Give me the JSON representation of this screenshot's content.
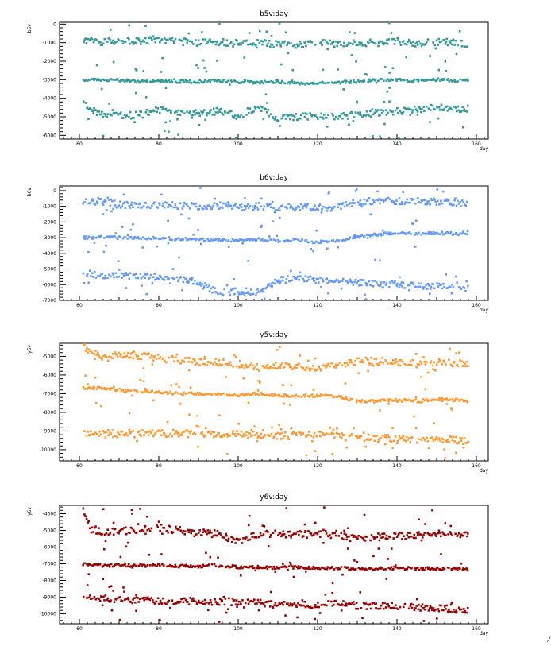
{
  "chart_data": [
    {
      "type": "scatter",
      "title": "b5v:day",
      "xlabel": "day",
      "ylabel": "b5v",
      "xlim": [
        55,
        163
      ],
      "ylim": [
        -6200,
        100
      ],
      "xticks": [
        60,
        80,
        100,
        120,
        140,
        160
      ],
      "yticks": [
        0,
        -1000,
        -2000,
        -3000,
        -4000,
        -5000,
        -6000
      ],
      "color": "#339999",
      "grid": false,
      "series": [
        {
          "values_by_band": [
            {
              "x": [
                61,
                65,
                70,
                75,
                80,
                85,
                90,
                95,
                100,
                105,
                110,
                115,
                120,
                125,
                130,
                135,
                140,
                145,
                150,
                155,
                158
              ],
              "y": [
                -900,
                -950,
                -900,
                -950,
                -850,
                -950,
                -1000,
                -950,
                -1050,
                -1000,
                -1100,
                -1100,
                -1000,
                -1050,
                -1050,
                -1000,
                -950,
                -1050,
                -950,
                -1000,
                -1050
              ]
            },
            {
              "x": [
                61,
                65,
                70,
                75,
                80,
                85,
                90,
                95,
                100,
                105,
                110,
                115,
                120,
                125,
                130,
                135,
                140,
                145,
                150,
                155,
                158
              ],
              "y": [
                -3050,
                -3000,
                -3050,
                -3100,
                -3050,
                -3100,
                -3100,
                -3050,
                -3100,
                -3150,
                -3100,
                -3200,
                -3200,
                -3150,
                -3100,
                -3000,
                -3000,
                -3050,
                -3000,
                -3050,
                -3050
              ]
            },
            {
              "x": [
                61,
                65,
                70,
                75,
                80,
                85,
                90,
                95,
                100,
                105,
                110,
                115,
                120,
                125,
                130,
                135,
                140,
                145,
                150,
                155,
                158
              ],
              "y": [
                -4300,
                -4900,
                -4950,
                -4900,
                -4650,
                -4700,
                -4800,
                -4700,
                -4950,
                -4500,
                -5100,
                -5000,
                -4950,
                -5000,
                -4900,
                -4800,
                -4700,
                -4600,
                -4500,
                -4550,
                -4550
              ]
            }
          ]
        }
      ]
    },
    {
      "type": "scatter",
      "title": "b6v:day",
      "xlabel": "day",
      "ylabel": "b6v",
      "xlim": [
        55,
        163
      ],
      "ylim": [
        -7000,
        300
      ],
      "xticks": [
        60,
        80,
        100,
        120,
        140,
        160
      ],
      "yticks": [
        0,
        -1000,
        -2000,
        -3000,
        -4000,
        -5000,
        -6000,
        -7000
      ],
      "color": "#6699ff",
      "grid": false,
      "series": [
        {
          "values_by_band": [
            {
              "x": [
                61,
                65,
                70,
                75,
                80,
                85,
                90,
                95,
                100,
                105,
                110,
                115,
                120,
                125,
                130,
                135,
                140,
                145,
                150,
                155,
                158
              ],
              "y": [
                -750,
                -650,
                -900,
                -950,
                -900,
                -950,
                -1000,
                -950,
                -1050,
                -1000,
                -1050,
                -1050,
                -1050,
                -1100,
                -700,
                -650,
                -650,
                -700,
                -650,
                -800,
                -850
              ]
            },
            {
              "x": [
                61,
                65,
                70,
                75,
                80,
                85,
                90,
                95,
                100,
                105,
                110,
                115,
                120,
                125,
                130,
                135,
                140,
                145,
                150,
                155,
                158
              ],
              "y": [
                -3000,
                -2950,
                -3000,
                -3050,
                -3000,
                -3100,
                -3100,
                -3150,
                -3200,
                -3100,
                -3200,
                -3150,
                -3300,
                -3200,
                -2950,
                -2800,
                -2700,
                -2750,
                -2700,
                -2750,
                -2750
              ]
            },
            {
              "x": [
                61,
                65,
                70,
                75,
                80,
                85,
                90,
                95,
                100,
                105,
                110,
                115,
                120,
                125,
                130,
                135,
                140,
                145,
                150,
                155,
                158
              ],
              "y": [
                -5200,
                -5400,
                -5450,
                -5400,
                -5500,
                -5600,
                -5900,
                -6500,
                -6400,
                -6500,
                -5700,
                -5600,
                -5700,
                -5800,
                -5900,
                -5950,
                -6000,
                -6050,
                -6100,
                -6200,
                -6200
              ]
            }
          ]
        }
      ]
    },
    {
      "type": "scatter",
      "title": "y5v:day",
      "xlabel": "day",
      "ylabel": "y5v",
      "xlim": [
        55,
        163
      ],
      "ylim": [
        -10600,
        -4300
      ],
      "xticks": [
        60,
        80,
        100,
        120,
        140,
        160
      ],
      "yticks": [
        -5000,
        -6000,
        -7000,
        -8000,
        -9000,
        -10000
      ],
      "color": "#ff9933",
      "grid": false,
      "series": [
        {
          "values_by_band": [
            {
              "x": [
                61,
                65,
                70,
                75,
                80,
                85,
                90,
                95,
                100,
                105,
                110,
                115,
                120,
                125,
                130,
                135,
                140,
                145,
                150,
                155,
                158
              ],
              "y": [
                -4500,
                -5000,
                -4900,
                -4950,
                -5100,
                -5200,
                -5300,
                -5300,
                -5400,
                -5600,
                -5500,
                -5550,
                -5600,
                -5550,
                -5250,
                -5250,
                -5300,
                -5400,
                -5300,
                -5350,
                -5400
              ]
            },
            {
              "x": [
                61,
                65,
                70,
                75,
                80,
                85,
                90,
                95,
                100,
                105,
                110,
                115,
                120,
                125,
                130,
                135,
                140,
                145,
                150,
                155,
                158
              ],
              "y": [
                -6700,
                -6700,
                -6800,
                -6900,
                -6900,
                -7000,
                -7000,
                -7050,
                -7100,
                -7000,
                -7100,
                -7100,
                -7100,
                -7150,
                -7400,
                -7400,
                -7350,
                -7400,
                -7300,
                -7350,
                -7400
              ]
            },
            {
              "x": [
                61,
                65,
                70,
                75,
                80,
                85,
                90,
                95,
                100,
                105,
                110,
                115,
                120,
                125,
                130,
                135,
                140,
                145,
                150,
                155,
                158
              ],
              "y": [
                -9100,
                -9100,
                -9150,
                -9150,
                -9150,
                -9100,
                -9200,
                -9150,
                -9150,
                -9200,
                -9250,
                -9250,
                -9200,
                -9250,
                -9350,
                -9400,
                -9400,
                -9450,
                -9400,
                -9500,
                -9550
              ]
            }
          ]
        }
      ]
    },
    {
      "type": "scatter",
      "title": "y6v:day",
      "xlabel": "day",
      "ylabel": "y6v",
      "xlim": [
        55,
        163
      ],
      "ylim": [
        -10600,
        -3500
      ],
      "xticks": [
        60,
        80,
        100,
        120,
        140,
        160
      ],
      "yticks": [
        -4000,
        -5000,
        -6000,
        -7000,
        -8000,
        -9000,
        -10000
      ],
      "color": "#990000",
      "grid": false,
      "series": [
        {
          "values_by_band": [
            {
              "x": [
                61,
                63,
                65,
                70,
                75,
                80,
                85,
                90,
                95,
                100,
                105,
                110,
                115,
                120,
                125,
                130,
                135,
                140,
                145,
                150,
                155,
                158
              ],
              "y": [
                -3800,
                -5000,
                -5050,
                -5050,
                -5000,
                -4850,
                -5000,
                -5200,
                -5200,
                -5700,
                -5200,
                -5200,
                -5250,
                -5200,
                -5300,
                -5500,
                -5400,
                -5350,
                -5300,
                -5150,
                -5250,
                -5250
              ]
            },
            {
              "x": [
                61,
                65,
                70,
                75,
                80,
                85,
                90,
                95,
                100,
                105,
                110,
                115,
                120,
                125,
                130,
                135,
                140,
                145,
                150,
                155,
                158
              ],
              "y": [
                -7000,
                -7100,
                -7100,
                -7100,
                -7100,
                -7150,
                -7150,
                -7100,
                -7200,
                -7200,
                -7250,
                -7200,
                -7250,
                -7250,
                -7300,
                -7300,
                -7250,
                -7300,
                -7300,
                -7300,
                -7350
              ]
            },
            {
              "x": [
                61,
                65,
                70,
                75,
                80,
                85,
                90,
                95,
                100,
                105,
                110,
                115,
                120,
                125,
                130,
                135,
                140,
                145,
                150,
                155,
                158
              ],
              "y": [
                -9000,
                -9100,
                -9100,
                -9200,
                -9250,
                -9200,
                -9300,
                -9250,
                -9300,
                -9350,
                -9450,
                -9450,
                -9500,
                -9400,
                -9500,
                -9550,
                -9550,
                -9650,
                -9650,
                -9750,
                -9800
              ]
            }
          ]
        }
      ]
    }
  ]
}
